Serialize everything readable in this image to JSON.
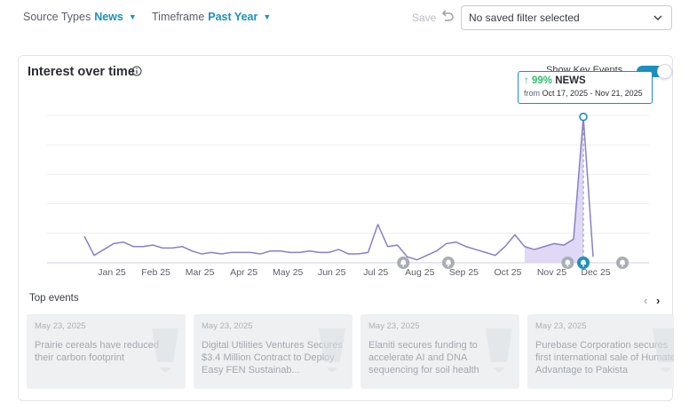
{
  "filters": {
    "source_label": "Source Types",
    "source_value": "News",
    "timeframe_label": "Timeframe",
    "timeframe_value": "Past Year",
    "save_label": "Save",
    "saved_filter_value": "No saved filter selected"
  },
  "card": {
    "title": "Interest over time",
    "key_events_label": "Show Key Events",
    "key_events_on": true,
    "tooltip": {
      "change": "99%",
      "series": "NEWS",
      "prefix": "from",
      "range": "Oct 17, 2025 - Nov 21, 2025"
    }
  },
  "chart_data": {
    "type": "line",
    "x_ticks": [
      "Jan 25",
      "Feb 25",
      "Mar 25",
      "Apr 25",
      "May 25",
      "Jun 25",
      "Jul 25",
      "Aug 25",
      "Sep 25",
      "Oct 25",
      "Nov 25",
      "Dec 25"
    ],
    "ylim": [
      0,
      100
    ],
    "grid": true,
    "values": [
      18,
      5,
      9,
      13,
      14,
      11,
      11,
      12,
      10,
      10,
      11,
      8,
      6,
      7,
      6,
      7,
      7,
      7,
      6,
      8,
      8,
      7,
      7,
      8,
      7,
      7,
      9,
      6,
      6,
      7,
      26,
      11,
      12,
      4,
      2,
      5,
      8,
      13,
      14,
      11,
      9,
      7,
      5,
      11,
      19,
      11,
      9,
      11,
      13,
      12,
      16,
      99,
      4
    ],
    "highlight_range": [
      45,
      51
    ],
    "peak_index": 51,
    "key_event_markers": [
      32.6,
      37.2,
      49.4,
      55.0
    ],
    "color": "#8b7fc4",
    "fill_color": "#d9d2f5",
    "accent": "#1f8fbd"
  },
  "top_events": {
    "title": "Top events",
    "items": [
      {
        "date": "May 23, 2025",
        "headline": "Prairie cereals have reduced their carbon footprint"
      },
      {
        "date": "May 23, 2025",
        "headline": "Digital Utilities Ventures Secures $3.4 Million Contract to Deploy Easy FEN Sustainab..."
      },
      {
        "date": "May 23, 2025",
        "headline": "Elaniti secures funding to accelerate AI and DNA sequencing for soil health"
      },
      {
        "date": "May 23, 2025",
        "headline": "Purebase Corporation secures first international sale of Humate Advantage to Pakista"
      }
    ]
  }
}
